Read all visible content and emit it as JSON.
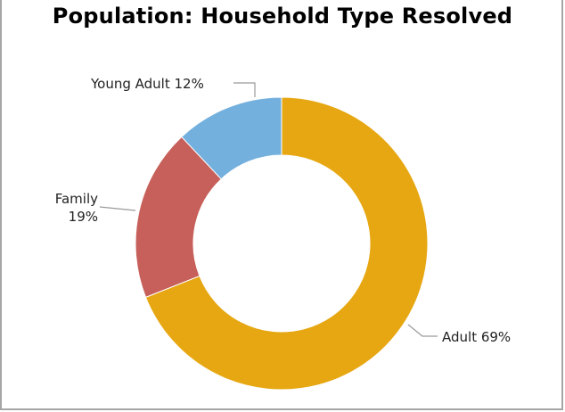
{
  "chart_data": {
    "type": "pie",
    "title": "Population: Household Type Resolved",
    "slices": [
      {
        "key": "adult",
        "label": "Adult",
        "percent_label": "69%",
        "value": 69,
        "color": "#E6A712"
      },
      {
        "key": "family",
        "label": "Family",
        "percent_label": "19%",
        "value": 19,
        "color": "#C7605A"
      },
      {
        "key": "young_adult",
        "label": "Young Adult",
        "percent_label": "12%",
        "value": 12,
        "color": "#74B0DD"
      }
    ],
    "donut": true,
    "legend": "none",
    "labels": {
      "adult": "Adult 69%",
      "family_line1": "Family",
      "family_line2": "19%",
      "young_adult": "Young Adult 12%"
    }
  }
}
